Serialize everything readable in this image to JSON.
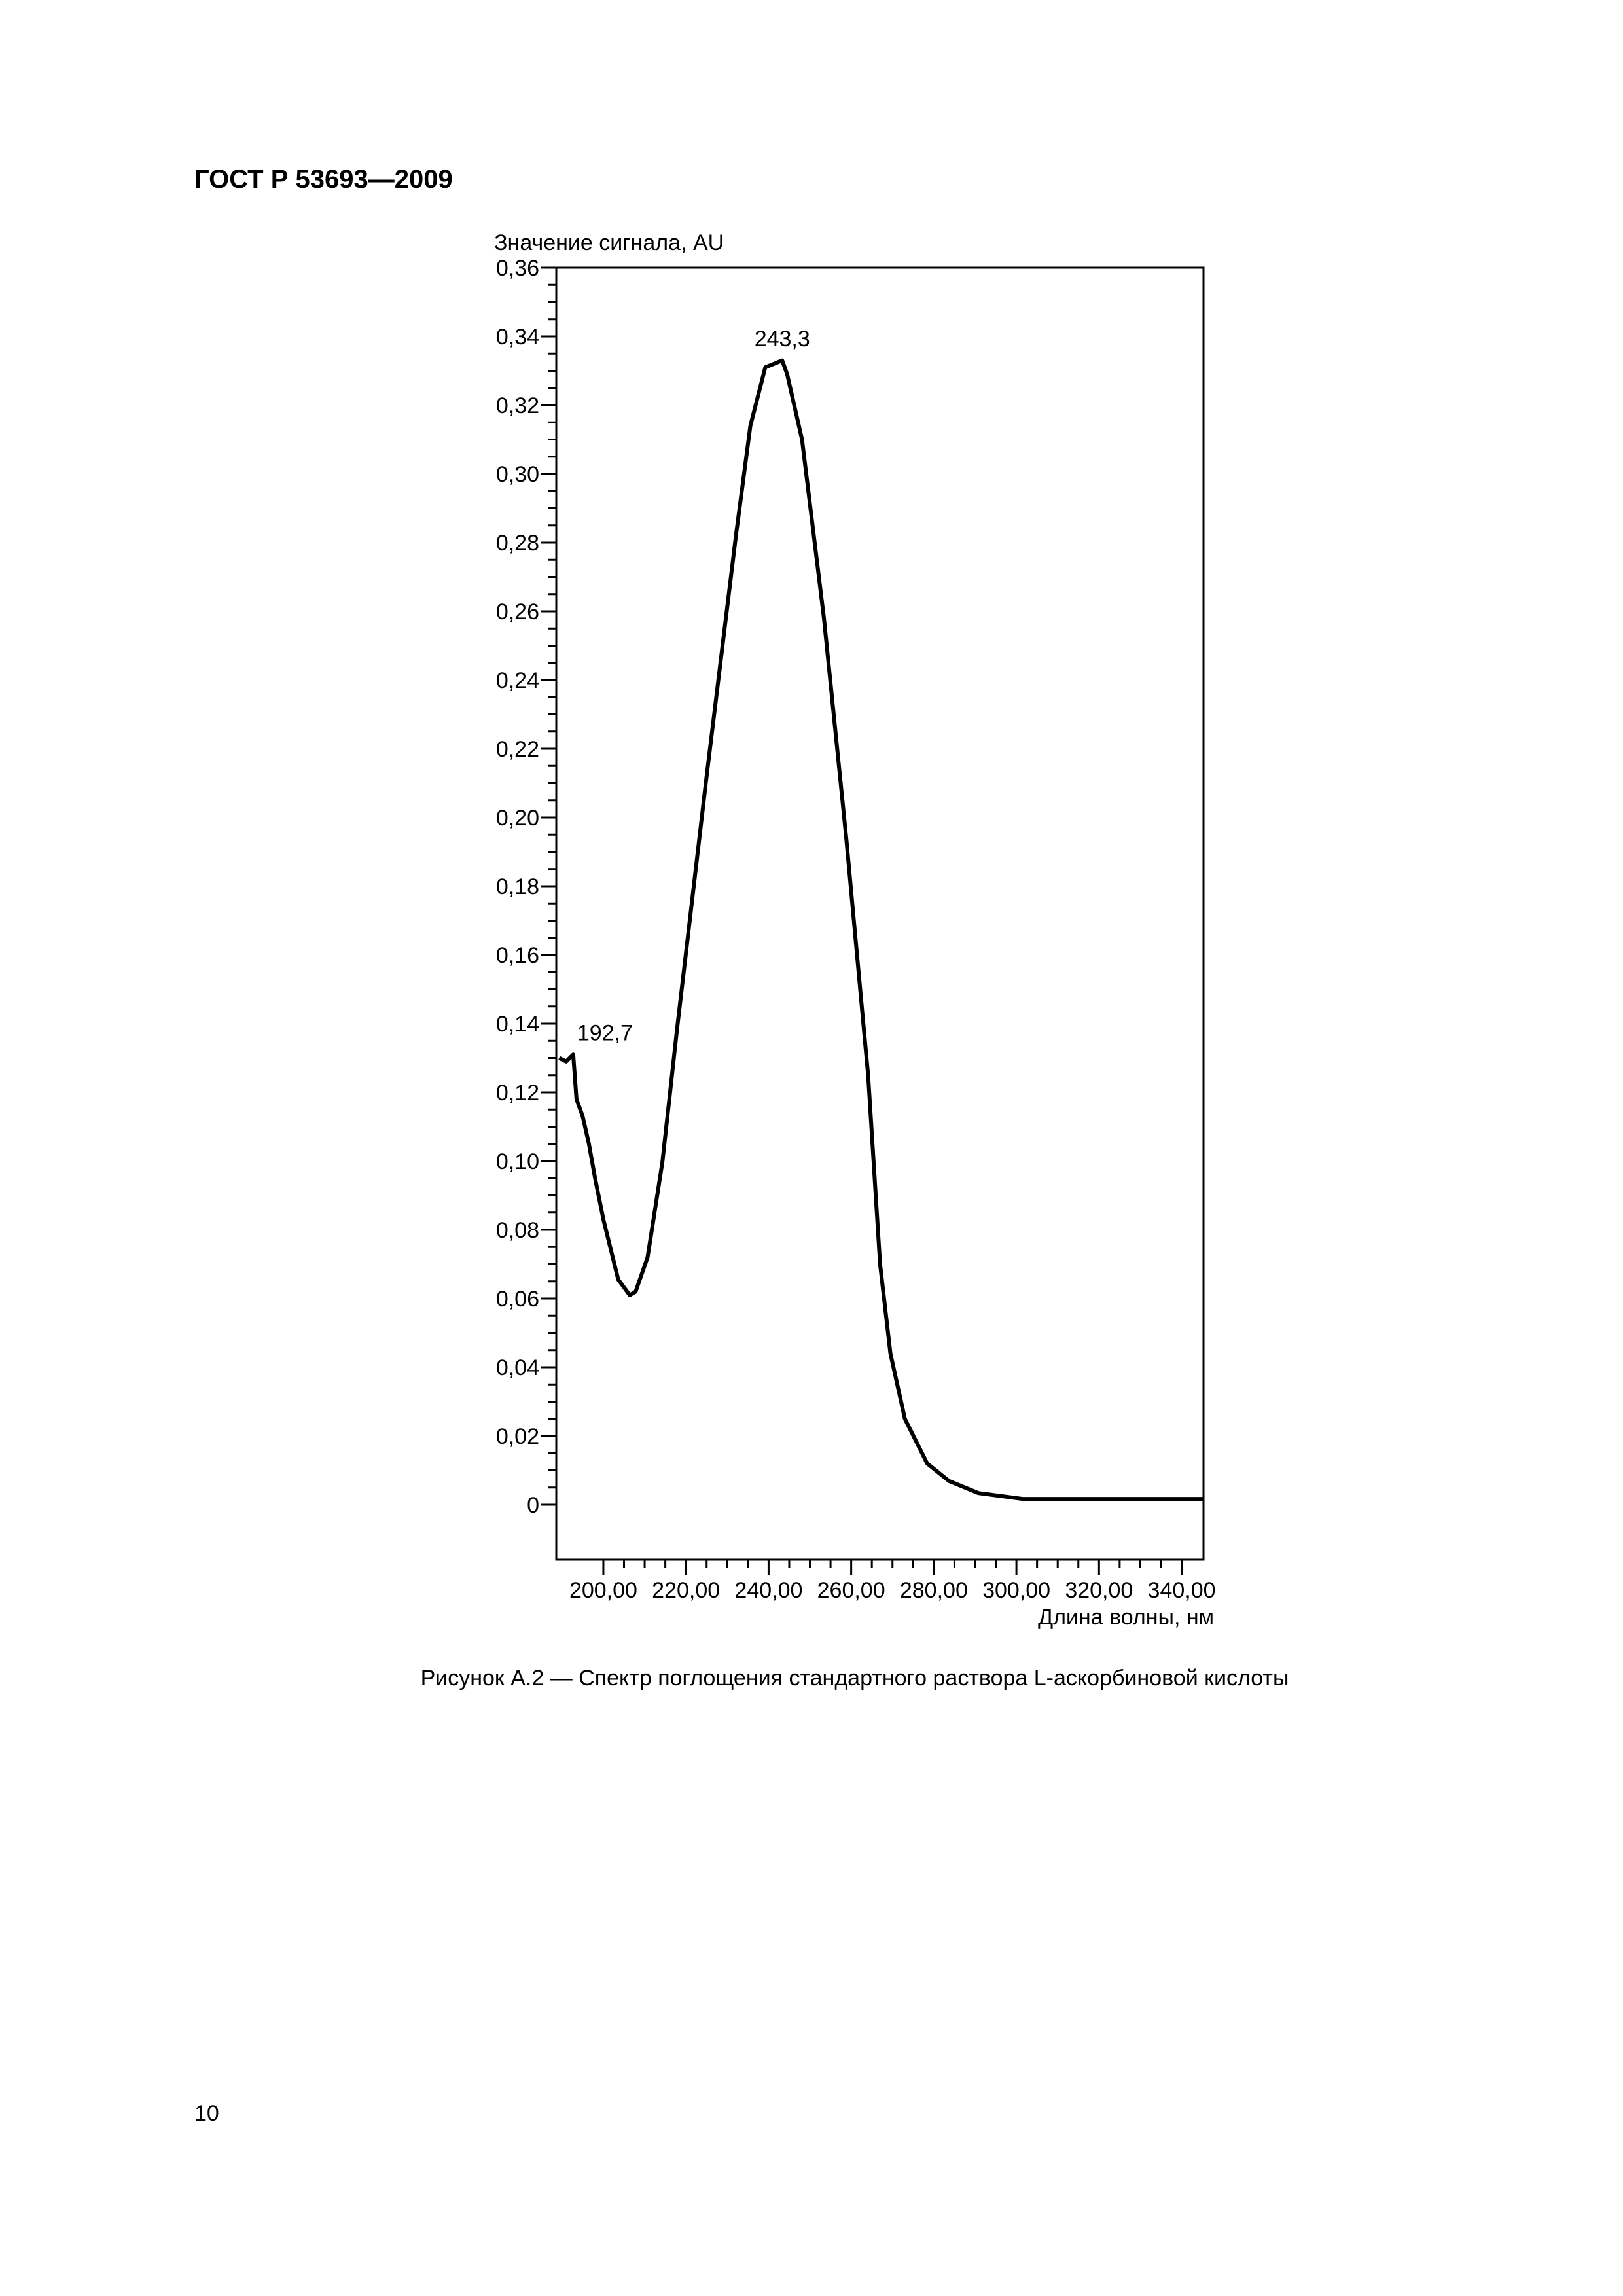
{
  "header": {
    "title": "ГОСТ Р 53693—2009"
  },
  "chart_data": {
    "type": "line",
    "y_label": "Значение сигнала, AU",
    "x_label": "Длина волны, нм",
    "color": "#000000",
    "xlim": [
      188.6,
      345.3
    ],
    "ylim": [
      -0.016,
      0.36
    ],
    "xticks": [
      {
        "value": 200,
        "label": "200,00"
      },
      {
        "value": 220,
        "label": "220,00"
      },
      {
        "value": 240,
        "label": "240,00"
      },
      {
        "value": 260,
        "label": "260,00"
      },
      {
        "value": 280,
        "label": "280,00"
      },
      {
        "value": 300,
        "label": "300,00"
      },
      {
        "value": 320,
        "label": "320,00"
      },
      {
        "value": 340,
        "label": "340,00"
      }
    ],
    "yticks": [
      0,
      {
        "value": 0.02,
        "label": "0,02"
      },
      {
        "value": 0.04,
        "label": "0,04"
      },
      {
        "value": 0.06,
        "label": "0,06"
      },
      {
        "value": 0.08,
        "label": "0,08"
      },
      {
        "value": 0.1,
        "label": "0,10"
      },
      {
        "value": 0.12,
        "label": "0,12"
      },
      {
        "value": 0.14,
        "label": "0,14"
      },
      {
        "value": 0.16,
        "label": "0,16"
      },
      {
        "value": 0.18,
        "label": "0,18"
      },
      {
        "value": 0.2,
        "label": "0,20"
      },
      {
        "value": 0.22,
        "label": "0,22"
      },
      {
        "value": 0.24,
        "label": "0,24"
      },
      {
        "value": 0.26,
        "label": "0,26"
      },
      {
        "value": 0.28,
        "label": "0,28"
      },
      {
        "value": 0.3,
        "label": "0,30"
      },
      {
        "value": 0.32,
        "label": "0,32"
      },
      {
        "value": 0.34,
        "label": "0,34"
      },
      {
        "value": 0.36,
        "label": "0,36"
      }
    ],
    "x": [
      189.3,
      191.0,
      192.7,
      193.5,
      195.0,
      196.5,
      198.0,
      200.0,
      203.6,
      206.4,
      207.8,
      210.7,
      214.3,
      217.8,
      224.9,
      232.1,
      235.6,
      239.2,
      243.3,
      244.5,
      248.1,
      253.4,
      258.8,
      264.1,
      267.0,
      269.5,
      273.0,
      278.4,
      283.7,
      290.8,
      301.5,
      345.3
    ],
    "values": [
      0.13,
      0.129,
      0.131,
      0.118,
      0.113,
      0.105,
      0.095,
      0.083,
      0.0655,
      0.061,
      0.062,
      0.072,
      0.0998,
      0.138,
      0.211,
      0.282,
      0.314,
      0.331,
      0.333,
      0.329,
      0.31,
      0.258,
      0.194,
      0.125,
      0.07,
      0.044,
      0.025,
      0.012,
      0.0069,
      0.0034,
      0.0017,
      0.0017
    ],
    "annotations": [
      {
        "x": 243.3,
        "y": 0.333,
        "label": "243,3"
      },
      {
        "x": 192.7,
        "y": 0.131,
        "label": "192,7"
      }
    ]
  },
  "caption": "Рисунок А.2 — Спектр поглощения стандартного раствора L-аскорбиновой кислоты",
  "page_number": "10"
}
